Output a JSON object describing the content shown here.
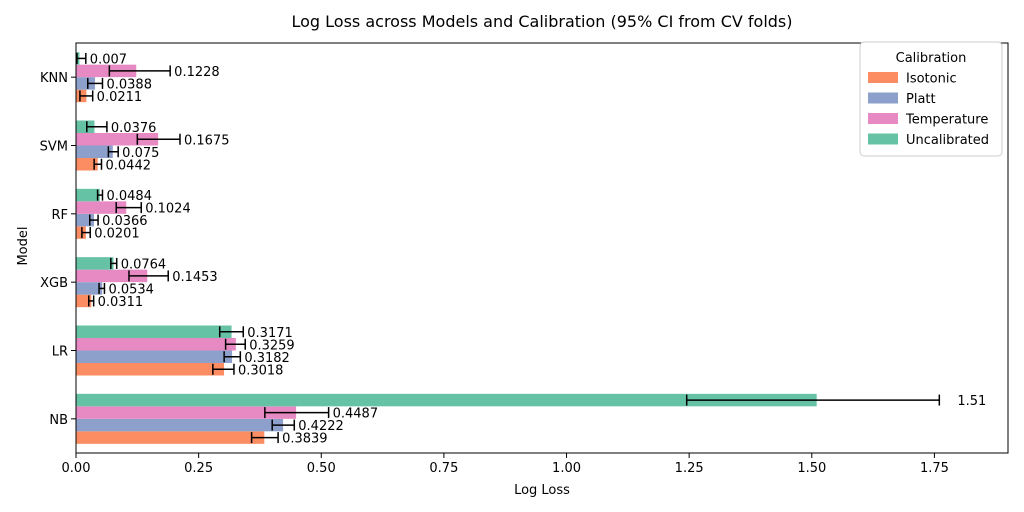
{
  "chart_data": {
    "type": "bar",
    "orientation": "horizontal",
    "title": "Log Loss across Models and Calibration (95% CI from CV folds)",
    "xlabel": "Log Loss",
    "ylabel": "Model",
    "categories": [
      "NB",
      "LR",
      "XGB",
      "RF",
      "SVM",
      "KNN"
    ],
    "xlim": [
      0,
      1.9
    ],
    "xticks": [
      "0.00",
      "0.25",
      "0.50",
      "0.75",
      "1.00",
      "1.25",
      "1.50",
      "1.75"
    ],
    "grid": false,
    "legend": {
      "title": "Calibration",
      "placement": "top-right"
    },
    "series": [
      {
        "name": "Isotonic",
        "color": "#fc8d62",
        "values": [
          0.3839,
          0.3018,
          0.0311,
          0.0201,
          0.0442,
          0.0211
        ],
        "ci": [
          [
            0.358,
            0.412
          ],
          [
            0.279,
            0.322
          ],
          [
            0.026,
            0.036
          ],
          [
            0.012,
            0.029
          ],
          [
            0.037,
            0.052
          ],
          [
            0.008,
            0.034
          ]
        ]
      },
      {
        "name": "Platt",
        "color": "#8da0cb",
        "values": [
          0.4222,
          0.3182,
          0.0534,
          0.0366,
          0.075,
          0.0388
        ],
        "ci": [
          [
            0.4,
            0.445
          ],
          [
            0.302,
            0.335
          ],
          [
            0.047,
            0.058
          ],
          [
            0.028,
            0.045
          ],
          [
            0.066,
            0.086
          ],
          [
            0.024,
            0.054
          ]
        ]
      },
      {
        "name": "Temperature",
        "color": "#e78ac3",
        "values": [
          0.4487,
          0.3259,
          0.1453,
          0.1024,
          0.1675,
          0.1228
        ],
        "ci": [
          [
            0.385,
            0.515
          ],
          [
            0.305,
            0.345
          ],
          [
            0.108,
            0.188
          ],
          [
            0.082,
            0.133
          ],
          [
            0.125,
            0.212
          ],
          [
            0.068,
            0.192
          ]
        ]
      },
      {
        "name": "Uncalibrated",
        "color": "#66c2a5",
        "values": [
          1.51,
          0.3171,
          0.0764,
          0.0484,
          0.0376,
          0.007
        ],
        "ci": [
          [
            1.245,
            1.76
          ],
          [
            0.293,
            0.341
          ],
          [
            0.071,
            0.083
          ],
          [
            0.044,
            0.054
          ],
          [
            0.022,
            0.063
          ],
          [
            0.002,
            0.02
          ]
        ]
      }
    ],
    "value_labels": {
      "Isotonic": [
        "0.3839",
        "0.3018",
        "0.0311",
        "0.0201",
        "0.0442",
        "0.0211"
      ],
      "Platt": [
        "0.4222",
        "0.3182",
        "0.0534",
        "0.0366",
        "0.075",
        "0.0388"
      ],
      "Temperature": [
        "0.4487",
        "0.3259",
        "0.1453",
        "0.1024",
        "0.1675",
        "0.1228"
      ],
      "Uncalibrated": [
        "1.51",
        "0.3171",
        "0.0764",
        "0.0484",
        "0.0376",
        "0.007"
      ]
    }
  }
}
